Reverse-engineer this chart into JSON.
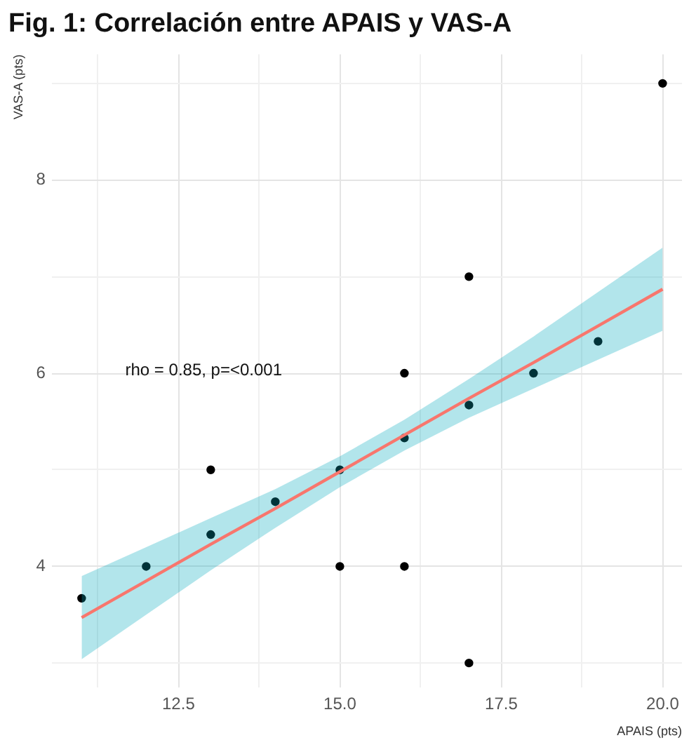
{
  "chart_data": {
    "type": "scatter",
    "title": "Fig. 1: Correlación entre APAIS y VAS-A",
    "xlabel": "APAIS (pts)",
    "ylabel": "VAS-A (pts)",
    "annotations": [
      "rho = 0.85, p=<0.001"
    ],
    "series": [
      {
        "color": "#000000",
        "marker": "circle",
        "x": [
          11,
          12,
          13,
          13,
          14,
          15,
          15,
          16,
          16,
          16,
          17,
          17,
          17,
          18,
          19,
          20
        ],
        "values": [
          3.67,
          4,
          4.33,
          5,
          4.67,
          5,
          4,
          5.33,
          6,
          4,
          5.67,
          7,
          3,
          6,
          6.33,
          9
        ]
      },
      {
        "type": "line",
        "color": "#f8766d",
        "marker": "none",
        "line_style": "solid",
        "x": [
          11,
          12,
          13,
          14,
          15,
          16,
          17,
          18,
          19,
          20
        ],
        "values": [
          3.47,
          3.85,
          4.23,
          4.6,
          4.98,
          5.36,
          5.74,
          6.11,
          6.49,
          6.87
        ],
        "lower": [
          3.04,
          3.5,
          3.96,
          4.4,
          4.82,
          5.2,
          5.54,
          5.84,
          6.14,
          6.44
        ],
        "upper": [
          3.9,
          4.2,
          4.5,
          4.8,
          5.14,
          5.52,
          5.94,
          6.38,
          6.84,
          7.3
        ]
      }
    ],
    "xlim": [
      10.55,
      20.3
    ],
    "ylim": [
      2.75,
      9.3
    ],
    "xticks": [
      {
        "value": 11.25,
        "label": null
      },
      12.5,
      {
        "value": 13.75,
        "label": null
      },
      {
        "value": 15,
        "label": "15.0"
      },
      {
        "value": 16.25,
        "label": null
      },
      17.5,
      {
        "value": 18.75,
        "label": null
      },
      {
        "value": 20,
        "label": "20.0"
      }
    ],
    "yticks": [
      {
        "value": 3,
        "label": null
      },
      4,
      {
        "value": 5,
        "label": null
      },
      6,
      {
        "value": 7,
        "label": null
      },
      8,
      {
        "value": 9,
        "label": null
      }
    ],
    "grid": true,
    "legend": false
  }
}
